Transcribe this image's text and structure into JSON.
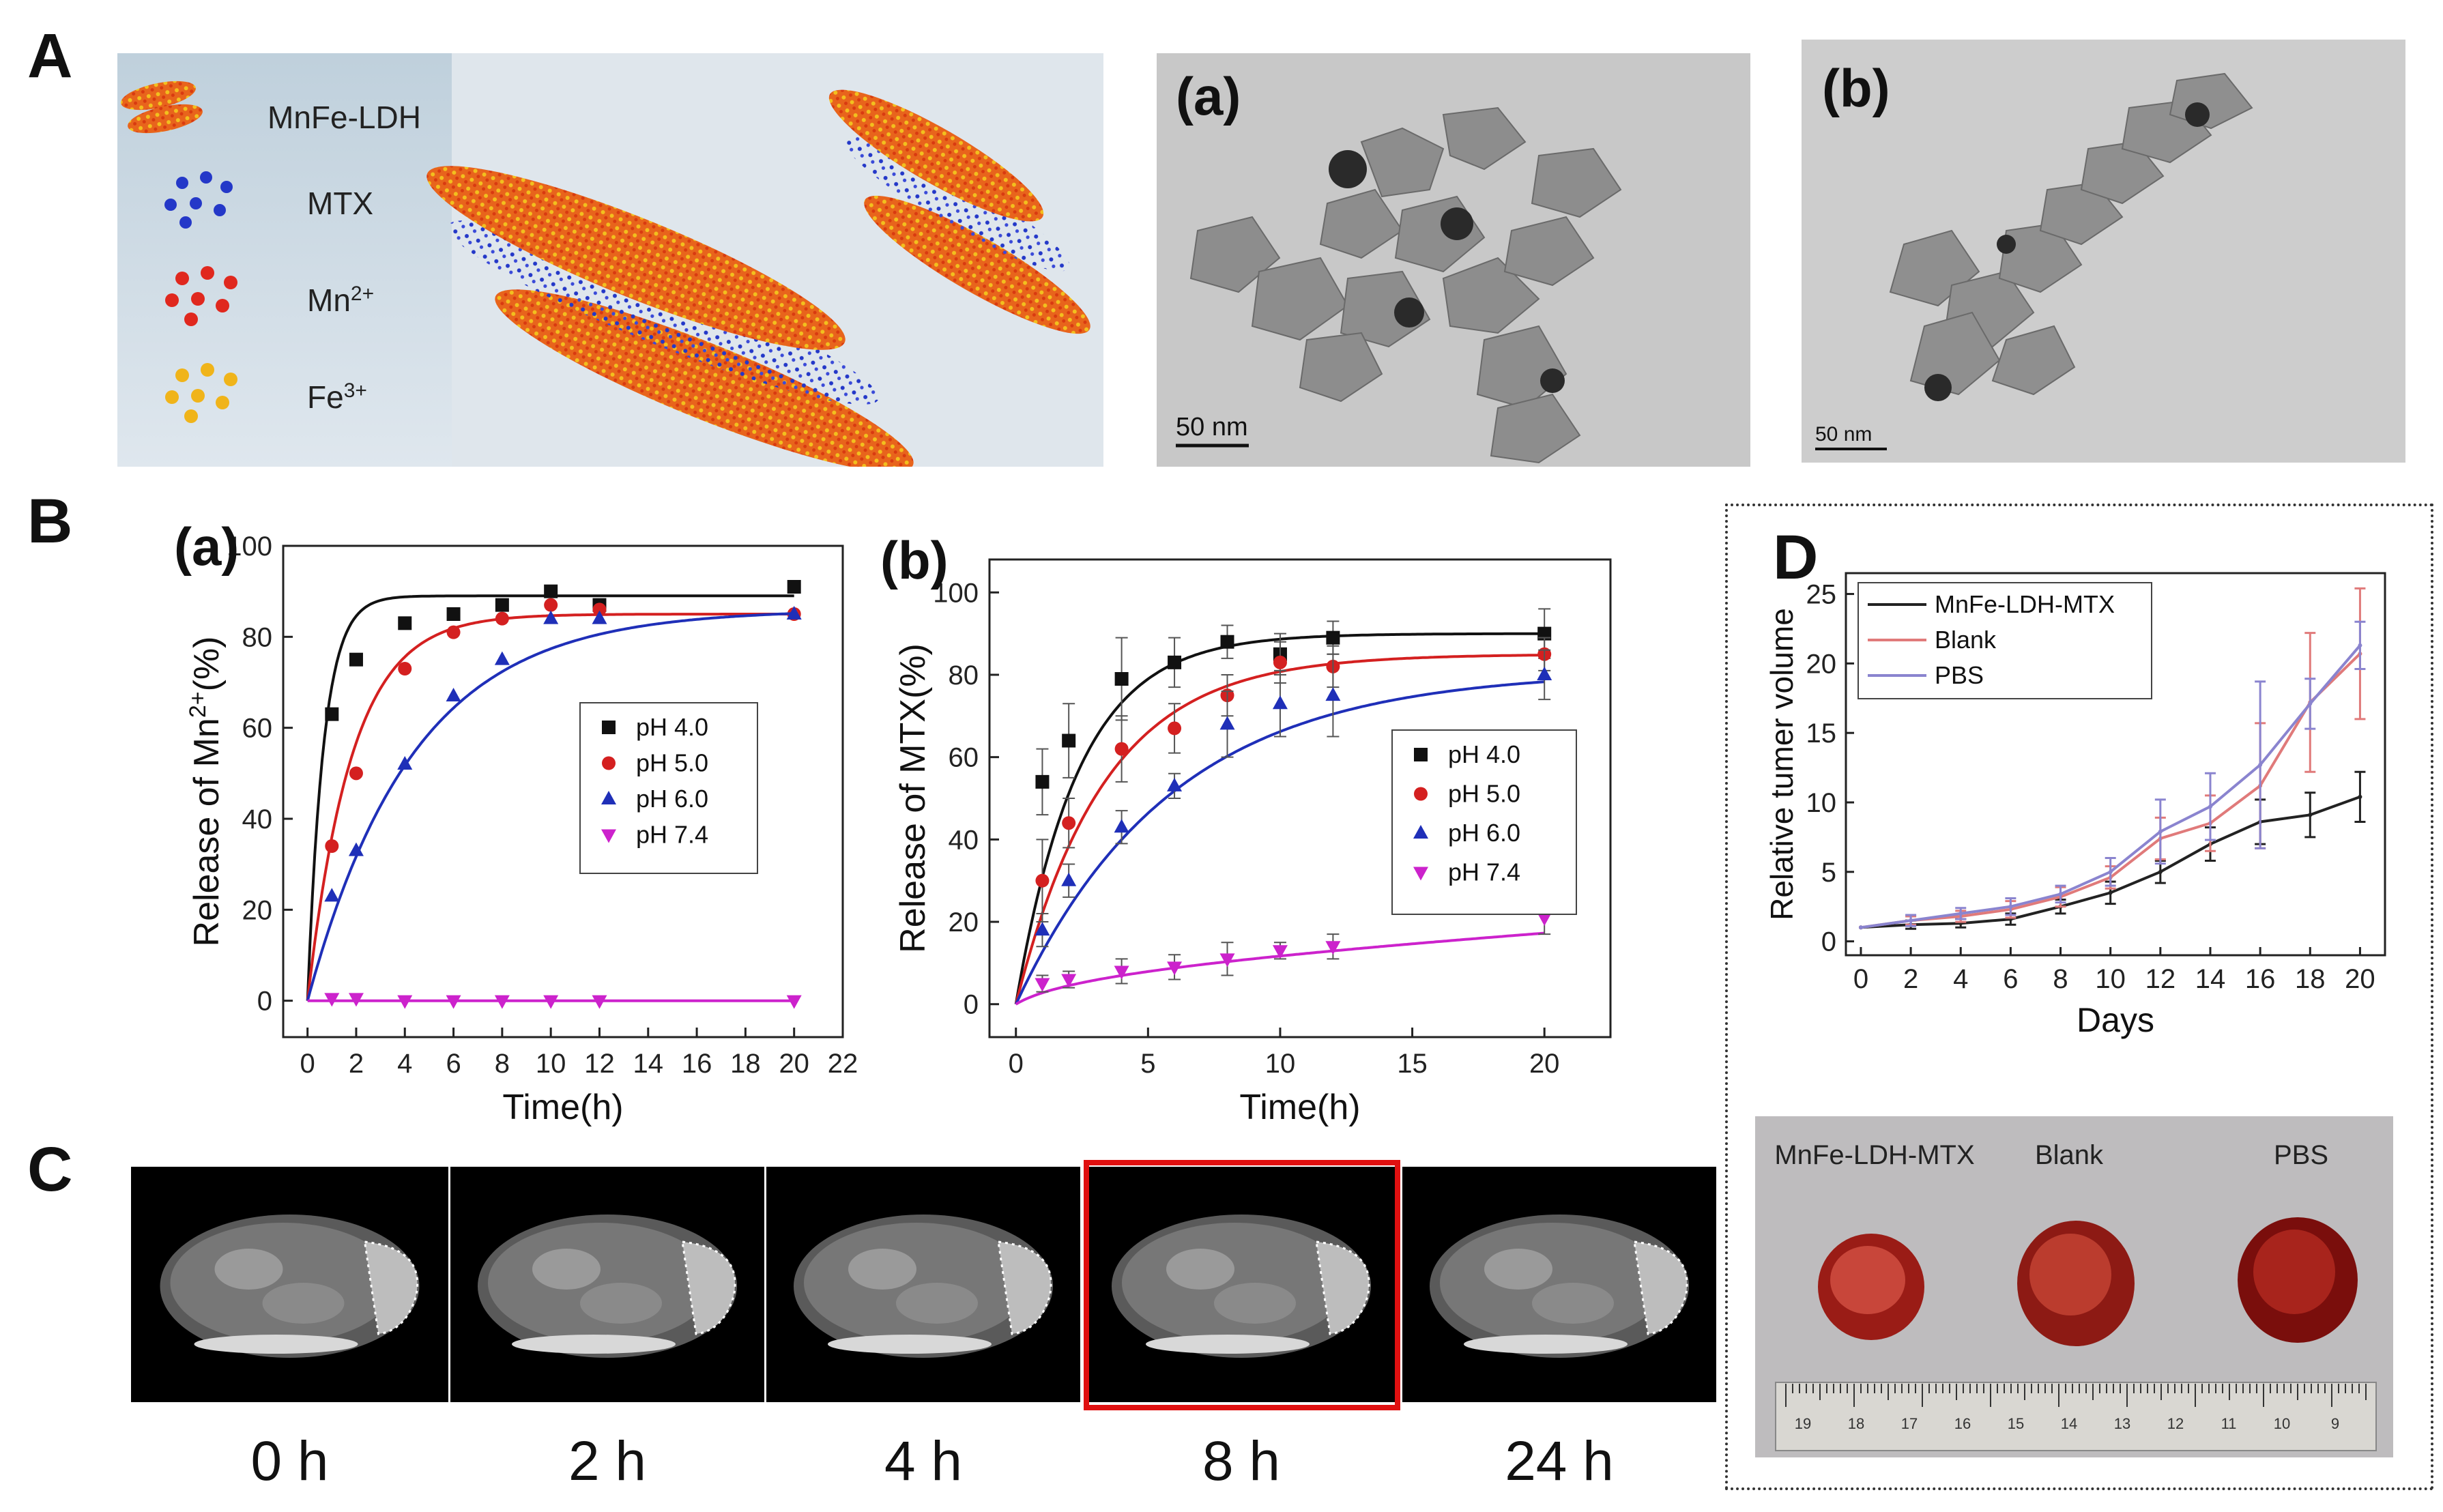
{
  "panels": {
    "A": "A",
    "B": "B",
    "C": "C",
    "D": "D"
  },
  "scheme": {
    "legend": [
      {
        "label": "MnFe-LDH",
        "sup": ""
      },
      {
        "label": "MTX",
        "sup": ""
      },
      {
        "label": "Mn",
        "sup": "2+"
      },
      {
        "label": "Fe",
        "sup": "3+"
      }
    ]
  },
  "tem": {
    "a": {
      "tag": "(a)",
      "scale": "50 nm"
    },
    "b": {
      "tag": "(b)",
      "scale": "50 nm"
    }
  },
  "colors": {
    "ph40": "#111111",
    "ph50": "#d42020",
    "ph60": "#1f2fb8",
    "ph74": "#cc22cc",
    "ldh_mtx": "#222222",
    "blank": "#e07a7a",
    "pbs": "#8a84cf",
    "highlight": "#e01010"
  },
  "chart_data": [
    {
      "id": "Ba",
      "tag": "(a)",
      "type": "scatter",
      "xlabel": "Time(h)",
      "ylabel_main": "Release of Mn",
      "ylabel_sup": "2+",
      "ylabel_tail": "(%)",
      "xlim": [
        -1,
        22
      ],
      "ylim": [
        -8,
        100
      ],
      "xticks": [
        0,
        2,
        4,
        6,
        8,
        10,
        12,
        14,
        16,
        18,
        20,
        22
      ],
      "yticks": [
        0,
        20,
        40,
        60,
        80,
        100
      ],
      "legend_position": "center-right",
      "series": [
        {
          "name": "pH 4.0",
          "marker": "square",
          "x": [
            1,
            2,
            4,
            6,
            8,
            10,
            12,
            20
          ],
          "y": [
            63,
            75,
            83,
            85,
            87,
            90,
            87,
            91
          ],
          "curve_plateau": 89,
          "curve_k": 1.5
        },
        {
          "name": "pH 5.0",
          "marker": "circle",
          "x": [
            1,
            2,
            4,
            6,
            8,
            10,
            12,
            20
          ],
          "y": [
            34,
            50,
            73,
            81,
            84,
            87,
            86,
            85
          ],
          "curve_plateau": 85,
          "curve_k": 0.55
        },
        {
          "name": "pH 6.0",
          "marker": "triangle-up",
          "x": [
            1,
            2,
            4,
            6,
            8,
            10,
            12,
            20
          ],
          "y": [
            23,
            33,
            52,
            67,
            75,
            84,
            84,
            85
          ],
          "curve_plateau": 86,
          "curve_k": 0.23
        },
        {
          "name": "pH 7.4",
          "marker": "triangle-down",
          "x": [
            1,
            2,
            4,
            6,
            8,
            10,
            12,
            20
          ],
          "y": [
            0.5,
            0.5,
            0,
            0,
            0,
            0,
            0,
            0
          ],
          "curve_plateau": 0,
          "curve_k": 1
        }
      ]
    },
    {
      "id": "Bb",
      "tag": "(b)",
      "type": "scatter",
      "xlabel": "Time(h)",
      "ylabel_main": "Release of MTX(%)",
      "ylabel_sup": "",
      "ylabel_tail": "",
      "xlim": [
        -1,
        22.5
      ],
      "ylim": [
        -8,
        108
      ],
      "xticks": [
        0,
        5,
        10,
        15,
        20
      ],
      "yticks": [
        0,
        20,
        40,
        60,
        80,
        100
      ],
      "legend_position": "center-right",
      "series": [
        {
          "name": "pH 4.0",
          "marker": "square",
          "x": [
            1,
            2,
            4,
            6,
            8,
            10,
            12,
            20
          ],
          "y": [
            54,
            64,
            79,
            83,
            88,
            85,
            89,
            90
          ],
          "err": [
            8,
            9,
            10,
            6,
            4,
            5,
            4,
            6
          ],
          "curve_plateau": 90,
          "curve_k": 0.42
        },
        {
          "name": "pH 5.0",
          "marker": "circle",
          "x": [
            1,
            2,
            4,
            6,
            8,
            10,
            12,
            20
          ],
          "y": [
            30,
            44,
            62,
            67,
            75,
            83,
            82,
            85
          ],
          "err": [
            10,
            6,
            8,
            6,
            5,
            5,
            5,
            4
          ],
          "curve_plateau": 85,
          "curve_k": 0.3
        },
        {
          "name": "pH 6.0",
          "marker": "triangle-up",
          "x": [
            1,
            2,
            4,
            6,
            8,
            10,
            12,
            20
          ],
          "y": [
            18,
            30,
            43,
            53,
            68,
            73,
            75,
            80
          ],
          "err": [
            4,
            4,
            4,
            3,
            8,
            8,
            10,
            6
          ],
          "curve_plateau": 81,
          "curve_k": 0.17
        },
        {
          "name": "pH 7.4",
          "marker": "triangle-down",
          "x": [
            1,
            2,
            4,
            6,
            8,
            10,
            12,
            20
          ],
          "y": [
            5,
            6,
            8,
            9,
            11,
            13,
            14,
            21
          ],
          "err": [
            2,
            2,
            3,
            3,
            4,
            2,
            3,
            4
          ],
          "curve_plateau": 0,
          "curve_k": 0
        }
      ]
    },
    {
      "id": "D",
      "type": "line",
      "xlabel": "Days",
      "ylabel": "Relative tumer volume",
      "xlim": [
        -0.6,
        21
      ],
      "ylim": [
        -1,
        26.5
      ],
      "xticks": [
        0,
        2,
        4,
        6,
        8,
        10,
        12,
        14,
        16,
        18,
        20
      ],
      "yticks": [
        0,
        5,
        10,
        15,
        20,
        25
      ],
      "legend_position": "top-left",
      "series": [
        {
          "name": "MnFe-LDH-MTX",
          "x": [
            0,
            2,
            4,
            6,
            8,
            10,
            12,
            14,
            16,
            18,
            20
          ],
          "y": [
            1,
            1.2,
            1.3,
            1.6,
            2.5,
            3.5,
            5,
            7,
            8.6,
            9.1,
            10.4
          ],
          "err": [
            0,
            0.3,
            0.3,
            0.4,
            0.5,
            0.8,
            0.8,
            1.2,
            1.6,
            1.6,
            1.8
          ]
        },
        {
          "name": "Blank",
          "x": [
            0,
            2,
            4,
            6,
            8,
            10,
            12,
            14,
            16,
            18,
            20
          ],
          "y": [
            1,
            1.5,
            1.8,
            2.3,
            3.2,
            4.6,
            7.4,
            8.5,
            11.2,
            17.2,
            20.7
          ],
          "err": [
            0,
            0.3,
            0.4,
            0.6,
            0.7,
            0.8,
            1.5,
            2,
            4.5,
            5,
            4.7
          ]
        },
        {
          "name": "PBS",
          "x": [
            0,
            2,
            4,
            6,
            8,
            10,
            12,
            14,
            16,
            18,
            20
          ],
          "y": [
            1,
            1.5,
            2,
            2.5,
            3.4,
            5,
            7.9,
            9.7,
            12.7,
            17.1,
            21.3
          ],
          "err": [
            0,
            0.4,
            0.4,
            0.6,
            0.6,
            1,
            2.3,
            2.4,
            6,
            1.8,
            1.7
          ]
        }
      ]
    }
  ],
  "mri": {
    "labels": [
      "0 h",
      "2 h",
      "4 h",
      "8 h",
      "24 h"
    ],
    "highlight_index": 3
  },
  "photo": {
    "labels": [
      "MnFe-LDH-MTX",
      "Blank",
      "PBS"
    ],
    "ruler_numbers": [
      "19",
      "18",
      "17",
      "16",
      "15",
      "14",
      "13",
      "12",
      "11",
      "10",
      "9"
    ]
  }
}
